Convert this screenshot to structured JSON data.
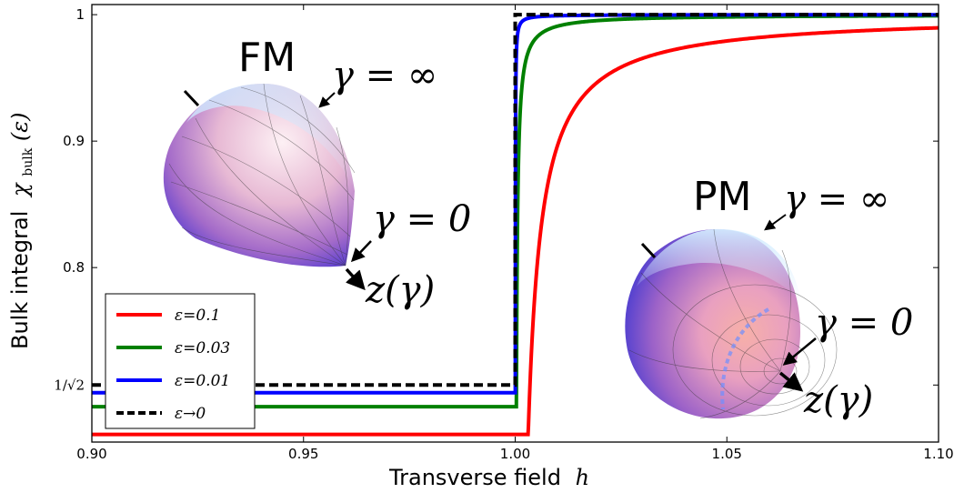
{
  "chart_data": {
    "type": "line",
    "xlabel": "Transverse field h",
    "ylabel": "Bulk integral χ_bulk(ε)",
    "xlabel_text": "Transverse field",
    "xlabel_var": "h",
    "ylabel_text": "Bulk integral",
    "ylabel_math": "χ",
    "ylabel_sub": "bulk",
    "ylabel_arg": "(ε)",
    "xlim": [
      0.9,
      1.1
    ],
    "ylim": [
      0.662,
      1.008
    ],
    "x_ticks": [
      {
        "value": 0.9,
        "label": "0.90"
      },
      {
        "value": 0.95,
        "label": "0.95"
      },
      {
        "value": 1.0,
        "label": "1.00"
      },
      {
        "value": 1.05,
        "label": "1.05"
      },
      {
        "value": 1.1,
        "label": "1.10"
      }
    ],
    "y_ticks": [
      {
        "value": 0.7071,
        "label": "1/√2"
      },
      {
        "value": 0.8,
        "label": "0.8"
      },
      {
        "value": 0.9,
        "label": "0.9"
      },
      {
        "value": 1.0,
        "label": "1"
      }
    ],
    "series": [
      {
        "name": "ε=0.1",
        "color": "#ff0000",
        "dash": false,
        "y_below": 0.668,
        "tail_scale": 0.0032
      },
      {
        "name": "ε=0.03",
        "color": "#008000",
        "dash": false,
        "y_below": 0.69,
        "tail_scale": 0.0003
      },
      {
        "name": "ε=0.01",
        "color": "#0000ff",
        "dash": false,
        "y_below": 0.701,
        "tail_scale": 3e-05
      },
      {
        "name": "ε→0",
        "color": "#000000",
        "dash": true,
        "y_below": 0.7071,
        "tail_scale": 0.0
      }
    ],
    "legend": {
      "position": "lower-left"
    },
    "annotations": {
      "fm": {
        "label": "FM",
        "gamma_inf": "γ = ∞",
        "gamma_zero": "γ = 0",
        "z": "z(γ)"
      },
      "pm": {
        "label": "PM",
        "gamma_inf": "γ = ∞",
        "gamma_zero": "γ = 0",
        "z": "z(γ)"
      }
    }
  }
}
